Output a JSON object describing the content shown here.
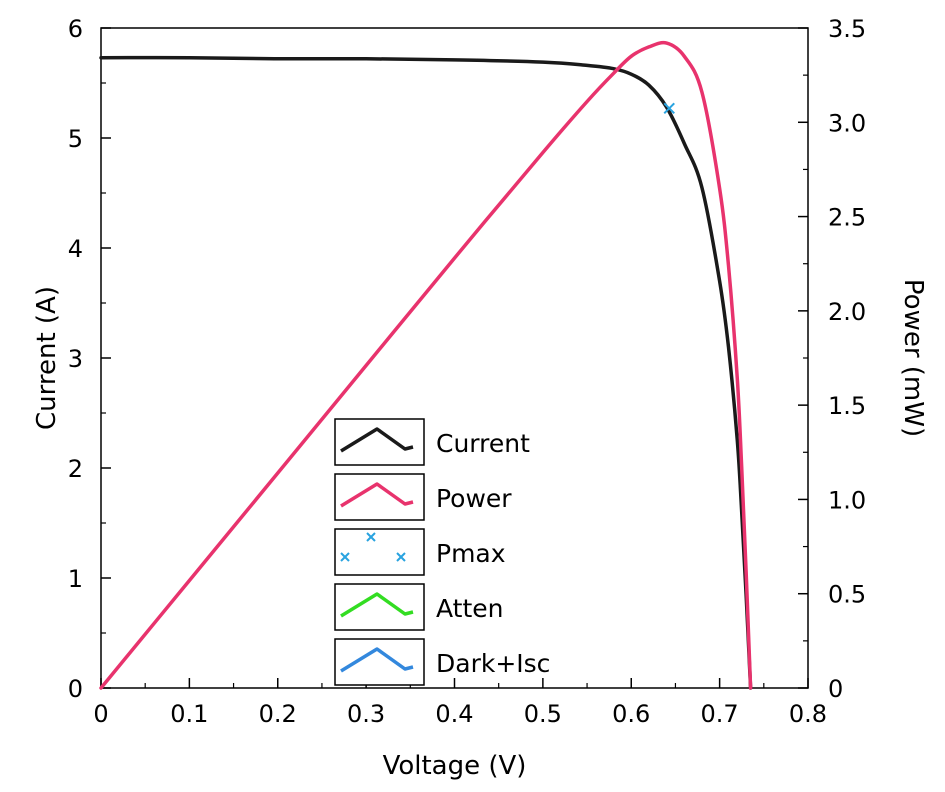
{
  "chart_data": {
    "type": "line",
    "title": "",
    "xlabel": "Voltage (V)",
    "ylabel_left": "Current (A)",
    "ylabel_right": "Power (mW)",
    "xlim": [
      0,
      0.8
    ],
    "ylim_left": [
      0,
      6
    ],
    "ylim_right": [
      0,
      3.5
    ],
    "x_ticks": [
      "0",
      "0.1",
      "0.2",
      "0.3",
      "0.4",
      "0.5",
      "0.6",
      "0.7",
      "0.8"
    ],
    "y_left_ticks": [
      "0",
      "1",
      "2",
      "3",
      "4",
      "5",
      "6"
    ],
    "y_right_ticks": [
      "0",
      "0.5",
      "1.0",
      "1.5",
      "2.0",
      "2.5",
      "3.0",
      "3.5"
    ],
    "grid": false,
    "legend_placement": "center",
    "series": [
      {
        "name": "Current",
        "axis": "left",
        "color": "#1a1a1a",
        "x": [
          0,
          0.1,
          0.2,
          0.3,
          0.4,
          0.5,
          0.55,
          0.58,
          0.6,
          0.62,
          0.64,
          0.66,
          0.68,
          0.7,
          0.71,
          0.72,
          0.725,
          0.73,
          0.735
        ],
        "y": [
          5.73,
          5.73,
          5.72,
          5.72,
          5.71,
          5.69,
          5.66,
          5.63,
          5.58,
          5.48,
          5.28,
          4.95,
          4.55,
          3.7,
          3.1,
          2.25,
          1.6,
          0.85,
          0.0
        ]
      },
      {
        "name": "Power",
        "axis": "right",
        "color": "#e8336d",
        "x": [
          0,
          0.1,
          0.2,
          0.3,
          0.4,
          0.5,
          0.55,
          0.58,
          0.6,
          0.62,
          0.64,
          0.66,
          0.68,
          0.7,
          0.71,
          0.72,
          0.725,
          0.73,
          0.735
        ],
        "y": [
          0.0,
          0.57,
          1.14,
          1.71,
          2.28,
          2.84,
          3.11,
          3.26,
          3.35,
          3.4,
          3.42,
          3.35,
          3.16,
          2.65,
          2.24,
          1.64,
          1.17,
          0.62,
          0.0
        ]
      },
      {
        "name": "Pmax",
        "axis": "left",
        "color": "#29a3e0",
        "marker": "x",
        "x": [
          0.643
        ],
        "y": [
          5.27
        ]
      },
      {
        "name": "Atten",
        "axis": "left",
        "color": "#33dd22",
        "x": [],
        "y": []
      },
      {
        "name": "Dark+Isc",
        "axis": "left",
        "color": "#3388dd",
        "x": [],
        "y": []
      }
    ]
  }
}
